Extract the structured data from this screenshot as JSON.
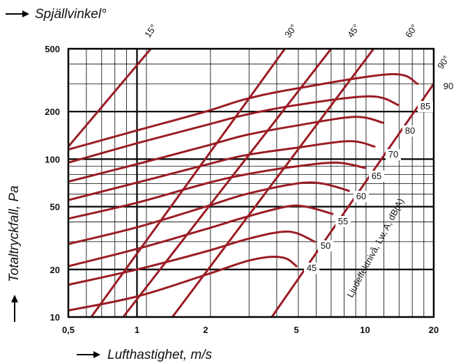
{
  "chart_data": {
    "type": "line",
    "title": "Spjällvinkel°",
    "xlabel": "Lufthastighet, m/s",
    "ylabel": "Totaltryckfall, Pa",
    "sound_label": "Ljudeffektnivå, Lw, A, dB(A)",
    "xscale": "log",
    "yscale": "log",
    "xlim": [
      0.5,
      20
    ],
    "ylim": [
      10,
      500
    ],
    "grid": true,
    "x_ticks": [
      {
        "v": 0.5,
        "label": "0,5"
      },
      {
        "v": 1,
        "label": "1"
      },
      {
        "v": 2,
        "label": "2"
      },
      {
        "v": 5,
        "label": "5"
      },
      {
        "v": 10,
        "label": "10"
      },
      {
        "v": 20,
        "label": "20"
      }
    ],
    "y_ticks": [
      {
        "v": 10,
        "label": "10"
      },
      {
        "v": 20,
        "label": "20"
      },
      {
        "v": 50,
        "label": "50"
      },
      {
        "v": 100,
        "label": "100"
      },
      {
        "v": 200,
        "label": "200"
      },
      {
        "v": 500,
        "label": "500"
      }
    ],
    "angle_lines": [
      {
        "name": "15°",
        "points": [
          [
            0.5,
            120
          ],
          [
            1.15,
            500
          ]
        ]
      },
      {
        "name": "30°",
        "points": [
          [
            0.63,
            10
          ],
          [
            4.45,
            500
          ]
        ]
      },
      {
        "name": "45°",
        "points": [
          [
            0.87,
            10
          ],
          [
            7.1,
            500
          ]
        ]
      },
      {
        "name": "60°",
        "points": [
          [
            1.43,
            10
          ],
          [
            10.9,
            500
          ]
        ]
      },
      {
        "name": "90°",
        "points": [
          [
            3.9,
            10
          ],
          [
            20,
            300
          ]
        ]
      }
    ],
    "dba_curves": [
      {
        "name": "45",
        "points": [
          [
            0.5,
            11
          ],
          [
            1.0,
            13.5
          ],
          [
            2.0,
            18.5
          ],
          [
            3.0,
            22.5
          ],
          [
            3.8,
            24
          ],
          [
            4.5,
            23.5
          ],
          [
            5.0,
            21
          ]
        ]
      },
      {
        "name": "50",
        "points": [
          [
            0.5,
            16
          ],
          [
            1.0,
            20
          ],
          [
            2.0,
            26
          ],
          [
            3.0,
            31
          ],
          [
            4.2,
            34.5
          ],
          [
            5.0,
            34
          ],
          [
            6.0,
            30
          ]
        ]
      },
      {
        "name": "55",
        "points": [
          [
            0.5,
            21
          ],
          [
            1.0,
            27
          ],
          [
            2.0,
            36
          ],
          [
            3.0,
            43
          ],
          [
            4.5,
            50
          ],
          [
            5.5,
            50
          ],
          [
            7.2,
            45
          ]
        ]
      },
      {
        "name": "60",
        "points": [
          [
            0.5,
            29
          ],
          [
            1.0,
            37
          ],
          [
            2.0,
            50
          ],
          [
            3.0,
            60
          ],
          [
            5.0,
            70
          ],
          [
            6.5,
            70
          ],
          [
            8.5,
            63
          ]
        ]
      },
      {
        "name": "65",
        "points": [
          [
            0.5,
            42
          ],
          [
            1.0,
            53
          ],
          [
            2.0,
            70
          ],
          [
            3.0,
            80
          ],
          [
            5.0,
            90
          ],
          [
            7.5,
            95
          ],
          [
            10.0,
            88
          ]
        ]
      },
      {
        "name": "70",
        "points": [
          [
            0.5,
            55
          ],
          [
            1.0,
            71
          ],
          [
            2.0,
            92
          ],
          [
            3.0,
            106
          ],
          [
            5.0,
            118
          ],
          [
            8.5,
            130
          ],
          [
            11.0,
            120
          ]
        ]
      },
      {
        "name": "80",
        "points": [
          [
            0.5,
            72
          ],
          [
            1.0,
            93
          ],
          [
            2.0,
            121
          ],
          [
            3.0,
            142
          ],
          [
            5.0,
            163
          ],
          [
            9.0,
            185
          ],
          [
            12.0,
            170
          ]
        ]
      },
      {
        "name": "85",
        "points": [
          [
            0.5,
            95
          ],
          [
            1.0,
            126
          ],
          [
            2.0,
            164
          ],
          [
            3.0,
            191
          ],
          [
            5.0,
            220
          ],
          [
            10.5,
            250
          ],
          [
            14.0,
            220
          ]
        ]
      },
      {
        "name": "90",
        "points": [
          [
            0.5,
            115
          ],
          [
            1.0,
            152
          ],
          [
            2.0,
            200
          ],
          [
            3.0,
            240
          ],
          [
            5.0,
            280
          ],
          [
            13.0,
            345
          ],
          [
            17.0,
            300
          ]
        ]
      }
    ],
    "curve_color": "#9b1c24",
    "grid_color": "#000000"
  }
}
